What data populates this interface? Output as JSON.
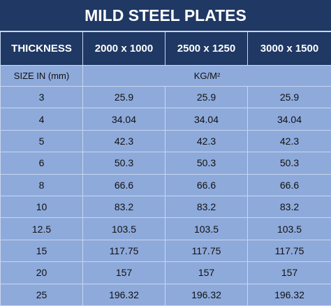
{
  "title": "MILD STEEL PLATES",
  "table": {
    "columns": [
      "THICKNESS",
      "2000 x 1000",
      "2500 x 1250",
      "3000 x 1500"
    ],
    "subheader": [
      "SIZE IN (mm)",
      "KG/M²"
    ],
    "rows": [
      [
        3,
        25.9,
        25.9,
        25.9
      ],
      [
        4,
        34.04,
        34.04,
        34.04
      ],
      [
        5,
        42.3,
        42.3,
        42.3
      ],
      [
        6,
        50.3,
        50.3,
        50.3
      ],
      [
        8,
        66.6,
        66.6,
        66.6
      ],
      [
        10,
        83.2,
        83.2,
        83.2
      ],
      [
        12.5,
        103.5,
        103.5,
        103.5
      ],
      [
        15,
        117.75,
        117.75,
        117.75
      ],
      [
        20,
        157,
        157,
        157
      ],
      [
        25,
        196.32,
        196.32,
        196.32
      ]
    ]
  }
}
